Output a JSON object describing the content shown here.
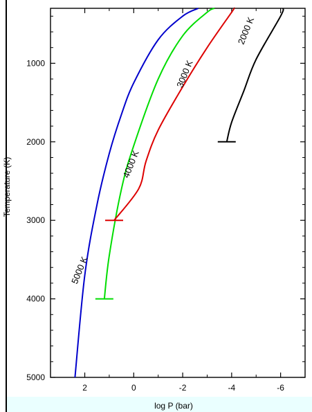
{
  "chart_data": {
    "type": "line",
    "title": "",
    "xlabel": "log P (bar)",
    "ylabel": "Temperature (K)",
    "xlim": [
      3.4,
      -7.0
    ],
    "ylim": [
      5000,
      300
    ],
    "y_inverted": true,
    "x_inverted": true,
    "x_ticks": [
      2,
      0,
      -2,
      -4,
      -6
    ],
    "x_tick_labels": [
      "2",
      "0",
      "-2",
      "-4",
      "-6"
    ],
    "y_ticks": [
      1000,
      2000,
      3000,
      4000,
      5000
    ],
    "y_tick_labels": [
      "1000",
      "2000",
      "3000",
      "4000",
      "5000"
    ],
    "grid": false,
    "series": [
      {
        "name": "5000 K",
        "color": "#0000cc",
        "x": [
          -2.64,
          -2.0,
          -1.0,
          0.0,
          0.5,
          1.0,
          1.5,
          2.0,
          2.4
        ],
        "y": [
          300,
          400,
          700,
          1250,
          1650,
          2150,
          2800,
          3700,
          5000
        ],
        "label_at": [
          2.1,
          3650
        ]
      },
      {
        "name": "4000 K",
        "color": "#00dd00",
        "x": [
          -3.3,
          -3.0,
          -2.0,
          -1.0,
          0.0,
          0.5,
          1.0,
          1.2
        ],
        "y": [
          300,
          350,
          650,
          1200,
          2050,
          2600,
          3450,
          4000
        ],
        "label_at": [
          0.0,
          2300
        ]
      },
      {
        "name": "3000 K",
        "color": "#dd0000",
        "x": [
          -4.1,
          -4.0,
          -3.0,
          -2.0,
          -1.0,
          -0.5,
          -0.2,
          0.8
        ],
        "y": [
          300,
          350,
          800,
          1300,
          1850,
          2250,
          2600,
          3000
        ],
        "label_at": [
          -2.2,
          1150
        ]
      },
      {
        "name": "2000 K",
        "color": "#000000",
        "x": [
          -6.1,
          -6.0,
          -5.0,
          -4.5,
          -4.0,
          -3.8
        ],
        "y": [
          300,
          400,
          950,
          1350,
          1750,
          2000
        ],
        "label_at": [
          -4.7,
          600
        ]
      }
    ]
  }
}
